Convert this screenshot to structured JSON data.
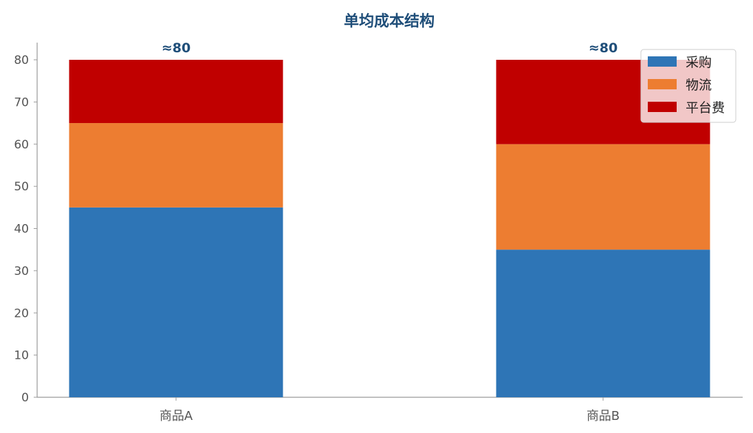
{
  "chart_data": {
    "type": "bar",
    "stacked": true,
    "title": "单均成本结构",
    "xlabel": "",
    "ylabel": "",
    "categories": [
      "商品A",
      "商品B"
    ],
    "series": [
      {
        "name": "采购",
        "values": [
          45,
          35
        ],
        "color": "#2e75b6"
      },
      {
        "name": "物流",
        "values": [
          20,
          25
        ],
        "color": "#ed7d31"
      },
      {
        "name": "平台费",
        "values": [
          15,
          20
        ],
        "color": "#c00000"
      }
    ],
    "totals_labels": [
      "≈80",
      "≈80"
    ],
    "ylim": [
      0,
      80
    ],
    "yticks": [
      0,
      10,
      20,
      30,
      40,
      50,
      60,
      70,
      80
    ],
    "grid": false,
    "legend_position": "top-right"
  }
}
